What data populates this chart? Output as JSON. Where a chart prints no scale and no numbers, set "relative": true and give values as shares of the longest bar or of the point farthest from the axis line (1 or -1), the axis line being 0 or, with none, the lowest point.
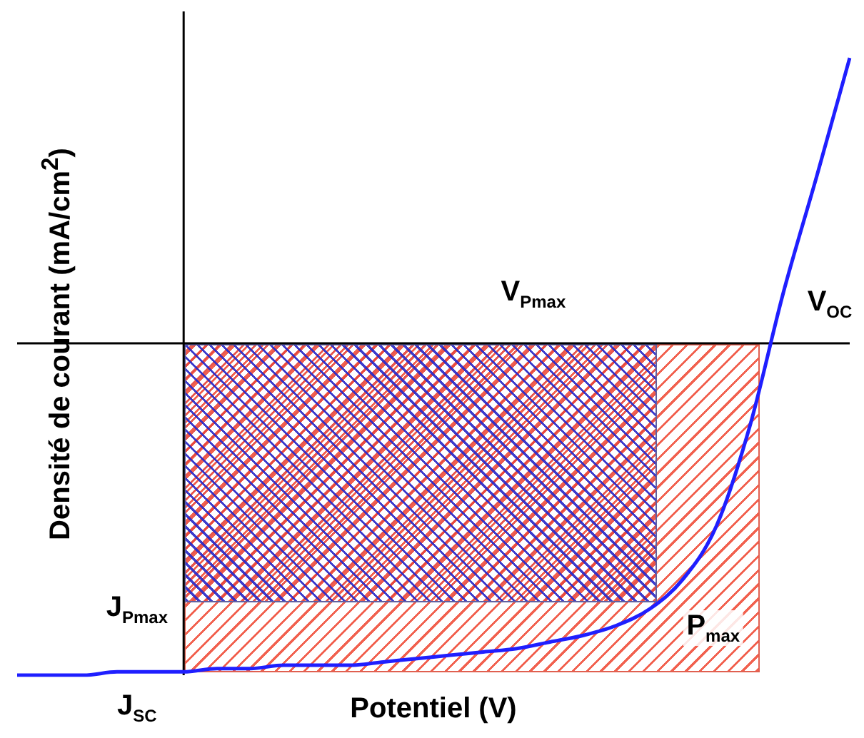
{
  "chart_data": {
    "type": "line",
    "relative": true,
    "xlabel": "Potentiel (V)",
    "ylabel": "Densité de courant (mA/cm$^{2}$)",
    "categories": [
      null,
      null,
      null,
      null,
      null,
      null,
      null,
      null,
      null,
      null,
      null,
      null,
      null,
      null,
      null,
      null,
      null,
      null,
      null,
      null,
      null,
      null,
      null,
      null,
      null,
      null
    ],
    "series": [
      {
        "color": "#1f1fff",
        "values": [
          -1.0,
          -1.0,
          -1.0,
          -0.99,
          -0.99,
          -0.99,
          -0.98,
          -0.98,
          -0.97,
          -0.97,
          -0.97,
          -0.96,
          -0.95,
          -0.94,
          -0.93,
          -0.92,
          -0.9,
          -0.88,
          -0.85,
          -0.8,
          -0.71,
          -0.55,
          -0.25,
          0.15,
          0.5,
          0.86
        ]
      }
    ],
    "annotations": [
      "V$_{Pmax}$",
      "V$_{OC}$",
      "J$_{Pmax}$",
      "J$_{SC}$",
      "P$_{max}$"
    ],
    "legend": false,
    "grid": false,
    "marker": "none",
    "line_style": "solid"
  }
}
